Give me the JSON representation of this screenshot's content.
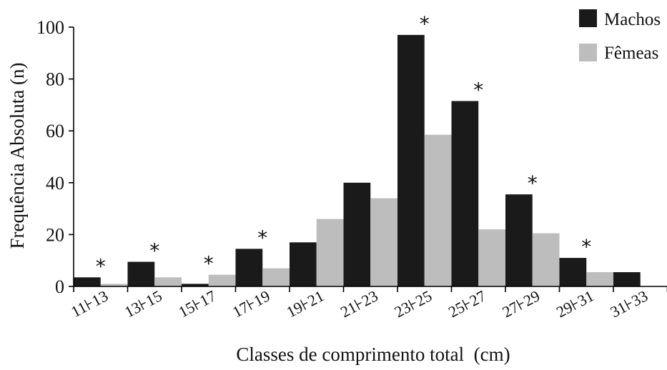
{
  "chart_data": {
    "type": "bar",
    "title": "",
    "xlabel": "Classes de comprimento total  (cm)",
    "ylabel": "Frequência Absoluta (n)",
    "ylim": [
      0,
      100
    ],
    "yticks": [
      0,
      20,
      40,
      60,
      80,
      100
    ],
    "categories": [
      "11⊦13",
      "13⊦15",
      "15⊦17",
      "17⊦19",
      "19⊦21",
      "21⊦23",
      "23⊦25",
      "25⊦27",
      "27⊦29",
      "29⊦31",
      "31⊦33"
    ],
    "series": [
      {
        "name": "Machos",
        "color": "#1a1a1a",
        "values": [
          3.5,
          9.5,
          1,
          14.5,
          17,
          40,
          97,
          71.5,
          35.5,
          11,
          5.5
        ]
      },
      {
        "name": "Fêmeas",
        "color": "#bdbdbd",
        "values": [
          1,
          3.5,
          4.5,
          7,
          26,
          34,
          58.5,
          22,
          20.5,
          5.5,
          0
        ]
      }
    ],
    "significance_marks": [
      {
        "category": "11⊦13",
        "symbol": "*"
      },
      {
        "category": "13⊦15",
        "symbol": "*"
      },
      {
        "category": "15⊦17",
        "symbol": "*"
      },
      {
        "category": "17⊦19",
        "symbol": "*"
      },
      {
        "category": "23⊦25",
        "symbol": "*"
      },
      {
        "category": "25⊦27",
        "symbol": "*"
      },
      {
        "category": "27⊦29",
        "symbol": "*"
      },
      {
        "category": "29⊦31",
        "symbol": "*"
      }
    ],
    "legend_position": "top-right",
    "grid": false
  }
}
